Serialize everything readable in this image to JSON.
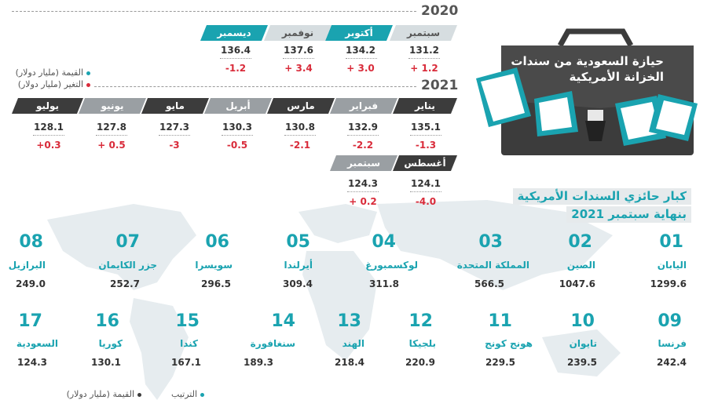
{
  "title": {
    "line1": "حيازة السعودية من سندات",
    "line2": "الخزانة الأمريكية"
  },
  "legend_top": {
    "value": "القيمة (مليار دولار)",
    "change": "التغير (مليار دولار)"
  },
  "year_2020": "2020",
  "year_2021": "2021",
  "months_2020": [
    {
      "name": "سبتمبر",
      "value": "131.2",
      "change": "+ 1.2"
    },
    {
      "name": "أكتوبر",
      "value": "134.2",
      "change": "+ 3.0"
    },
    {
      "name": "نوفمبر",
      "value": "137.6",
      "change": "+ 3.4"
    },
    {
      "name": "ديسمبر",
      "value": "136.4",
      "change": "-1.2"
    }
  ],
  "months_2021_row1": [
    {
      "name": "يناير",
      "value": "135.1",
      "change": "-1.3"
    },
    {
      "name": "فبراير",
      "value": "132.9",
      "change": "-2.2"
    },
    {
      "name": "مارس",
      "value": "130.8",
      "change": "-2.1"
    },
    {
      "name": "أبريل",
      "value": "130.3",
      "change": "-0.5"
    },
    {
      "name": "مايو",
      "value": "127.3",
      "change": "-3"
    },
    {
      "name": "يونيو",
      "value": "127.8",
      "change": "+ 0.5"
    },
    {
      "name": "يوليو",
      "value": "128.1",
      "change": "+0.3"
    }
  ],
  "months_2021_row2": [
    {
      "name": "أغسطس",
      "value": "124.1",
      "change": "-4.0"
    },
    {
      "name": "سبتمبر",
      "value": "124.3",
      "change": "+ 0.2"
    }
  ],
  "holders_title": {
    "line1": "كبار حائزي السندات الأمريكية",
    "line2": "بنهاية سبتمبر 2021"
  },
  "holders": [
    {
      "rank": "01",
      "name": "اليابان",
      "value": "1299.6"
    },
    {
      "rank": "02",
      "name": "الصين",
      "value": "1047.6"
    },
    {
      "rank": "03",
      "name": "المملكة المتحدة",
      "value": "566.5"
    },
    {
      "rank": "04",
      "name": "لوكسمبورغ",
      "value": "311.8"
    },
    {
      "rank": "05",
      "name": "أيرلندا",
      "value": "309.4"
    },
    {
      "rank": "06",
      "name": "سويسرا",
      "value": "296.5"
    },
    {
      "rank": "07",
      "name": "جزر الكايمان",
      "value": "252.7"
    },
    {
      "rank": "08",
      "name": "البرازيل",
      "value": "249.0"
    },
    {
      "rank": "09",
      "name": "فرنسا",
      "value": "242.4"
    },
    {
      "rank": "10",
      "name": "تايوان",
      "value": "239.5"
    },
    {
      "rank": "11",
      "name": "هونج كونج",
      "value": "229.5"
    },
    {
      "rank": "12",
      "name": "بلجيكا",
      "value": "220.9"
    },
    {
      "rank": "13",
      "name": "الهند",
      "value": "218.4"
    },
    {
      "rank": "14",
      "name": "سنغافورة",
      "value": "189.3"
    },
    {
      "rank": "15",
      "name": "كندا",
      "value": "167.1"
    },
    {
      "rank": "16",
      "name": "كوريا",
      "value": "130.1"
    },
    {
      "rank": "17",
      "name": "السعودية",
      "value": "124.3"
    }
  ],
  "legend_bottom": {
    "rank": "الترتيب",
    "value": "القيمة (مليار دولار)"
  },
  "colors": {
    "teal": "#1aa3b0",
    "dark": "#3c3c3c",
    "red": "#d92b3a",
    "map": "#e3e9ec"
  }
}
